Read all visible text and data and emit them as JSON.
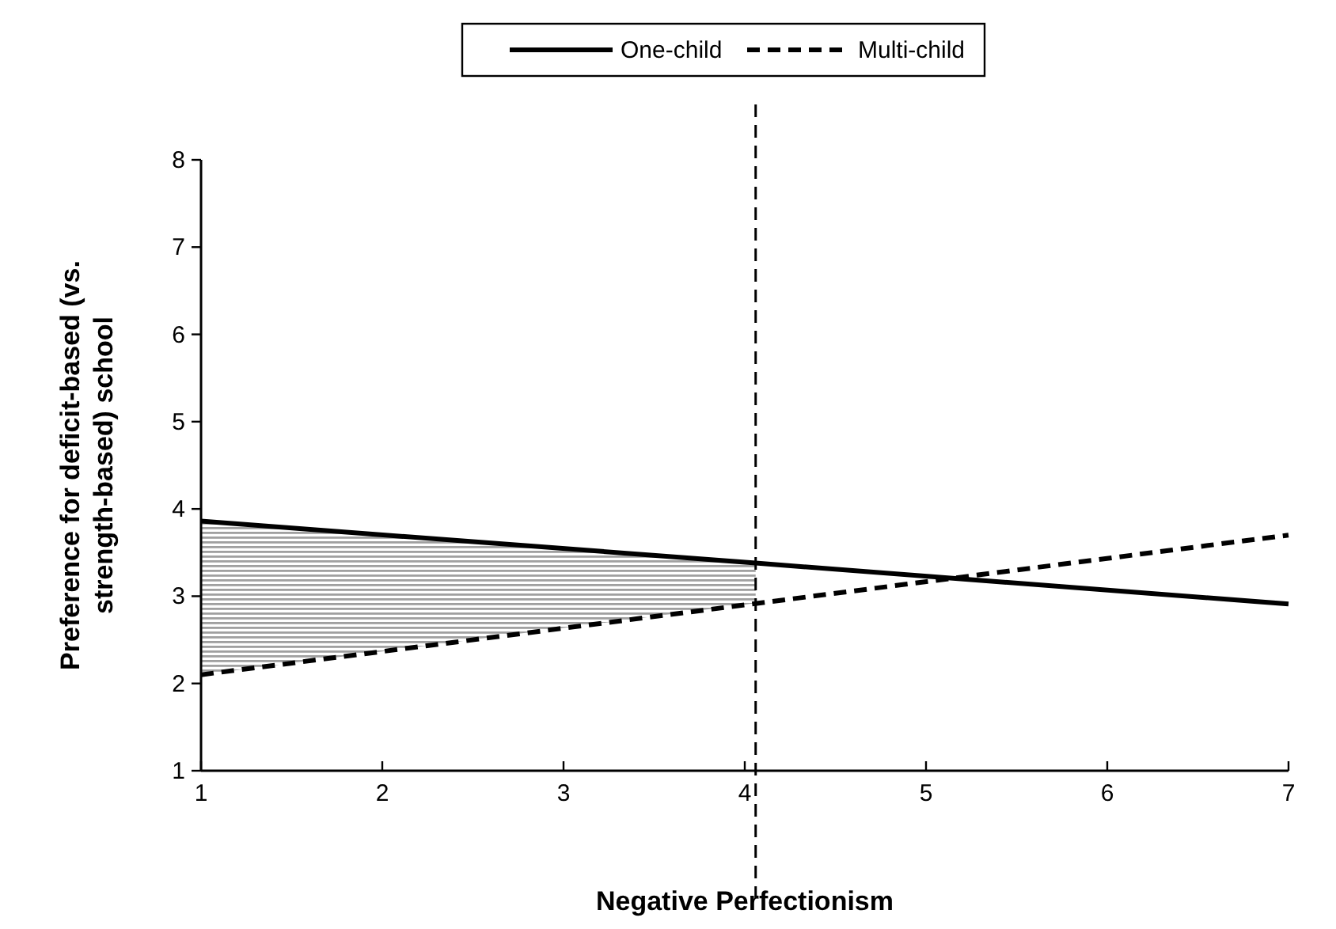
{
  "chart_data": {
    "type": "line",
    "xlabel": "Negative Perfectionism",
    "ylabel": "Preference for deficit-based (vs.\nstrength-based) school",
    "x": [
      1,
      7
    ],
    "xlim": [
      1,
      7
    ],
    "xticks": [
      1,
      2,
      3,
      4,
      5,
      6,
      7
    ],
    "ylim": [
      1,
      8
    ],
    "yticks": [
      1,
      2,
      3,
      4,
      5,
      6,
      7,
      8
    ],
    "series": [
      {
        "name": "One-child",
        "color": "#000000",
        "x": [
          1,
          4.06,
          7
        ],
        "values": [
          3.86,
          3.38,
          2.91
        ],
        "lower": [
          2.1,
          2.92,
          null
        ],
        "upper": [
          3.86,
          3.38,
          null
        ],
        "line_style": "solid"
      },
      {
        "name": "Multi-child",
        "color": "#000000",
        "values": [
          2.1,
          3.7
        ],
        "line_style": "dashed"
      }
    ],
    "ref_lines": [
      {
        "axis": "x",
        "value": 4.06,
        "line_style": "dashed",
        "color": "#000000"
      }
    ],
    "legend": "top",
    "grid": false,
    "marker": "none"
  }
}
